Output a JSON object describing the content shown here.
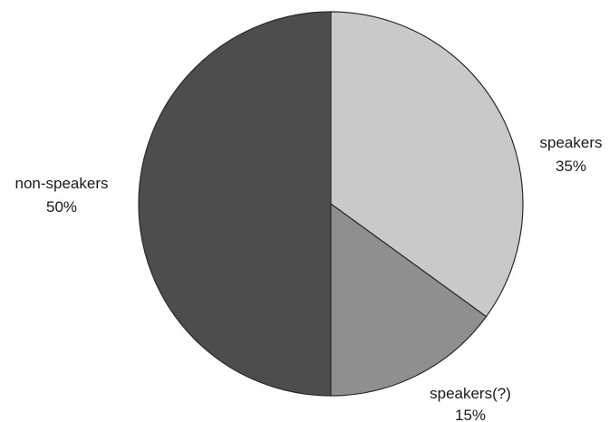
{
  "chart_data": {
    "type": "pie",
    "title": "",
    "slices": [
      {
        "name": "speakers",
        "value": 35,
        "pct_label": "35%",
        "color": "#c9c9c9"
      },
      {
        "name": "speakers(?)",
        "value": 15,
        "pct_label": "15%",
        "color": "#8f8f8f"
      },
      {
        "name": "non-speakers",
        "value": 50,
        "pct_label": "50%",
        "color": "#4d4d4d"
      }
    ],
    "start_angle": "12 o'clock",
    "direction": "clockwise",
    "edge_color": "#2a2a2a",
    "legend": "none"
  }
}
